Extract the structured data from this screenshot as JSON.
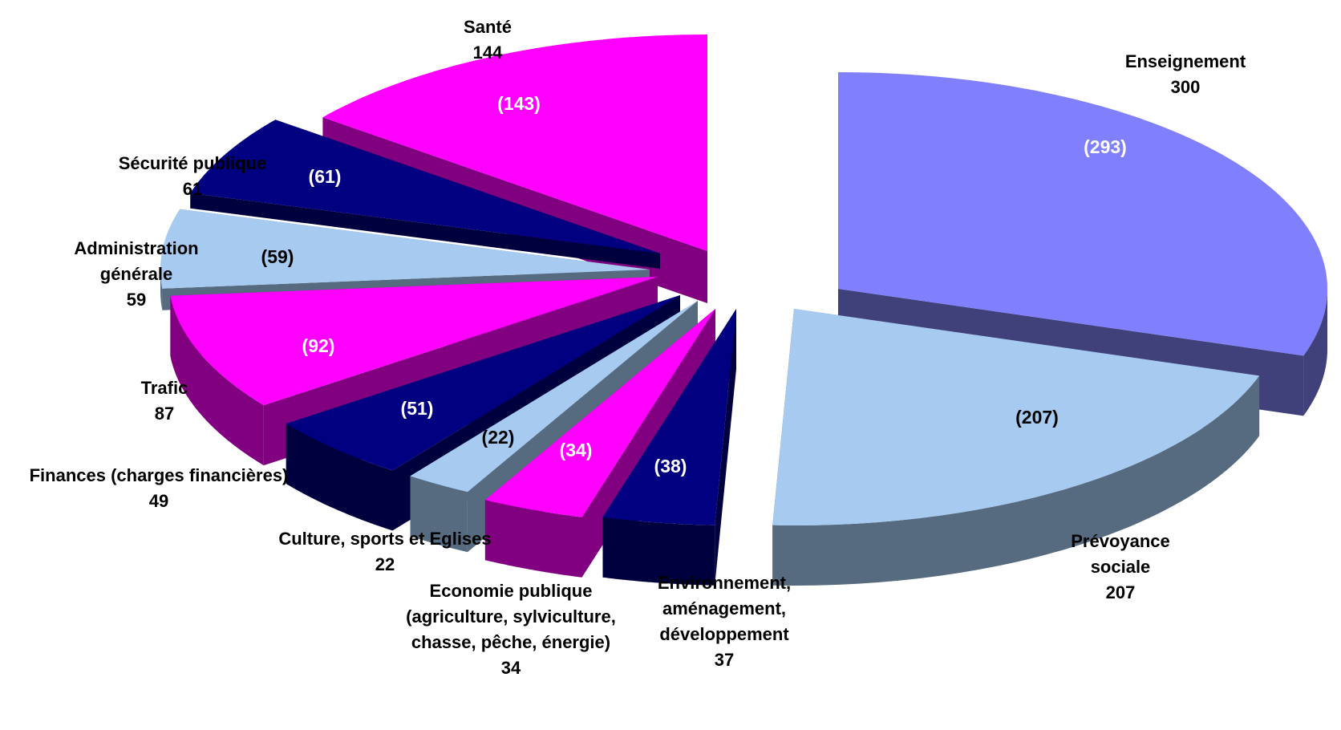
{
  "chart_data": {
    "type": "pie",
    "title": "",
    "series": [
      {
        "slices": [
          {
            "name": "Enseignement",
            "name_lines": [
              "Enseignement"
            ],
            "value": 300,
            "inner_label": "(293)",
            "color": "#8080ff",
            "side_color": "#40407a",
            "inner_color": "#ffffff"
          },
          {
            "name": "Prévoyance sociale",
            "name_lines": [
              "Prévoyance",
              "sociale"
            ],
            "value": 207,
            "inner_label": "(207)",
            "color": "#a6caf0",
            "side_color": "#566b80",
            "inner_color": "#000000"
          },
          {
            "name": "Environnement, aménagement, développement",
            "name_lines": [
              "Environnement,",
              "aménagement,",
              "développement",
              "",
              "37"
            ],
            "value": 37,
            "inner_label": "(38)",
            "color": "#000080",
            "side_color": "#00003e",
            "inner_color": "#ffffff"
          },
          {
            "name": "Economie publique (agriculture, sylviculture, chasse, pêche, énergie)",
            "name_lines": [
              "Economie publique",
              "(agriculture, sylviculture,",
              "chasse, pêche, énergie)",
              "34"
            ],
            "value": 34,
            "inner_label": "(34)",
            "color": "#ff00ff",
            "side_color": "#800080",
            "inner_color": "#ffffff"
          },
          {
            "name": "Culture, sports et Eglises",
            "name_lines": [
              "Culture, sports et Eglises",
              "22"
            ],
            "value": 22,
            "inner_label": "(22)",
            "color": "#a6caf0",
            "side_color": "#566b80",
            "inner_color": "#000000"
          },
          {
            "name": "Finances (charges financières)",
            "name_lines": [
              "Finances (charges financières)",
              "49"
            ],
            "value": 49,
            "inner_label": "(51)",
            "color": "#000080",
            "side_color": "#00003e",
            "inner_color": "#ffffff"
          },
          {
            "name": "Trafic",
            "name_lines": [
              "Trafic",
              "87"
            ],
            "value": 87,
            "inner_label": "(92)",
            "color": "#ff00ff",
            "side_color": "#800080",
            "inner_color": "#ffffff"
          },
          {
            "name": "Administration générale",
            "name_lines": [
              "Administration",
              "générale",
              "59"
            ],
            "value": 59,
            "inner_label": "(59)",
            "color": "#a6caf0",
            "side_color": "#566b80",
            "inner_color": "#000000"
          },
          {
            "name": "Sécurité publique",
            "name_lines": [
              "Sécurité publique",
              "61"
            ],
            "value": 61,
            "inner_label": "(61)",
            "color": "#000080",
            "side_color": "#00003e",
            "inner_color": "#ffffff"
          },
          {
            "name": "Santé",
            "name_lines": [
              "Santé",
              "144"
            ],
            "value": 144,
            "inner_label": "(143)",
            "color": "#ff00ff",
            "side_color": "#800080",
            "inner_color": "#ffffff"
          }
        ]
      }
    ]
  }
}
